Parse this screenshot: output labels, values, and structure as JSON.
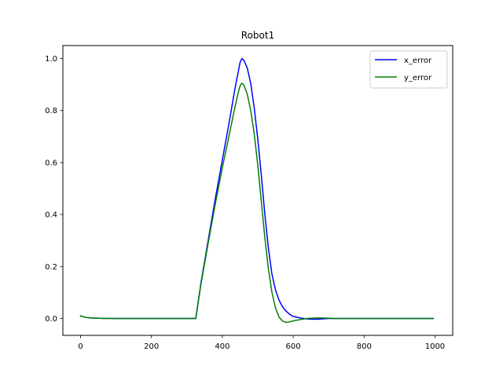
{
  "chart_data": {
    "type": "line",
    "title": "Robot1",
    "xlabel": "",
    "ylabel": "",
    "xlim": [
      -50,
      1050
    ],
    "ylim": [
      -0.065,
      1.05
    ],
    "xticks": [
      0,
      200,
      400,
      600,
      800,
      1000
    ],
    "yticks": [
      0.0,
      0.2,
      0.4,
      0.6,
      0.8,
      1.0
    ],
    "xtick_labels": [
      "0",
      "200",
      "400",
      "600",
      "800",
      "1000"
    ],
    "ytick_labels": [
      "0.0",
      "0.2",
      "0.4",
      "0.6",
      "0.8",
      "1.0"
    ],
    "grid": false,
    "legend_position": "top-right",
    "series": [
      {
        "name": "x_error",
        "color": "#0000ff",
        "points": [
          [
            0,
            0.01
          ],
          [
            5,
            0.008
          ],
          [
            15,
            0.004
          ],
          [
            30,
            0.002
          ],
          [
            60,
            0.0005
          ],
          [
            100,
            0.0
          ],
          [
            200,
            0.0
          ],
          [
            300,
            0.0
          ],
          [
            325,
            0.0
          ],
          [
            340,
            0.14
          ],
          [
            360,
            0.3
          ],
          [
            380,
            0.46
          ],
          [
            400,
            0.61
          ],
          [
            420,
            0.76
          ],
          [
            435,
            0.88
          ],
          [
            445,
            0.95
          ],
          [
            450,
            0.985
          ],
          [
            455,
            1.0
          ],
          [
            460,
            0.995
          ],
          [
            470,
            0.965
          ],
          [
            480,
            0.905
          ],
          [
            490,
            0.81
          ],
          [
            500,
            0.69
          ],
          [
            510,
            0.55
          ],
          [
            520,
            0.4
          ],
          [
            530,
            0.27
          ],
          [
            540,
            0.17
          ],
          [
            550,
            0.11
          ],
          [
            560,
            0.07
          ],
          [
            570,
            0.045
          ],
          [
            580,
            0.028
          ],
          [
            590,
            0.016
          ],
          [
            600,
            0.008
          ],
          [
            620,
            0.002
          ],
          [
            640,
            -0.002
          ],
          [
            660,
            -0.003
          ],
          [
            680,
            -0.002
          ],
          [
            700,
            0.0
          ],
          [
            720,
            0.0
          ],
          [
            800,
            0.0
          ],
          [
            900,
            0.0
          ],
          [
            995,
            0.0
          ]
        ]
      },
      {
        "name": "y_error",
        "color": "#008000",
        "points": [
          [
            0,
            0.01
          ],
          [
            5,
            0.008
          ],
          [
            15,
            0.004
          ],
          [
            30,
            0.002
          ],
          [
            60,
            0.0005
          ],
          [
            100,
            0.0
          ],
          [
            200,
            0.0
          ],
          [
            300,
            0.0
          ],
          [
            325,
            0.0
          ],
          [
            340,
            0.135
          ],
          [
            360,
            0.29
          ],
          [
            380,
            0.44
          ],
          [
            400,
            0.58
          ],
          [
            420,
            0.71
          ],
          [
            435,
            0.81
          ],
          [
            445,
            0.87
          ],
          [
            450,
            0.895
          ],
          [
            455,
            0.905
          ],
          [
            460,
            0.9
          ],
          [
            470,
            0.865
          ],
          [
            480,
            0.8
          ],
          [
            490,
            0.71
          ],
          [
            500,
            0.59
          ],
          [
            510,
            0.45
          ],
          [
            520,
            0.31
          ],
          [
            530,
            0.19
          ],
          [
            540,
            0.1
          ],
          [
            550,
            0.04
          ],
          [
            560,
            0.005
          ],
          [
            570,
            -0.01
          ],
          [
            580,
            -0.015
          ],
          [
            590,
            -0.013
          ],
          [
            600,
            -0.009
          ],
          [
            620,
            -0.004
          ],
          [
            640,
            0.0
          ],
          [
            660,
            0.002
          ],
          [
            680,
            0.002
          ],
          [
            700,
            0.001
          ],
          [
            720,
            0.0
          ],
          [
            800,
            0.0
          ],
          [
            900,
            0.0
          ],
          [
            995,
            0.0
          ]
        ]
      }
    ]
  }
}
